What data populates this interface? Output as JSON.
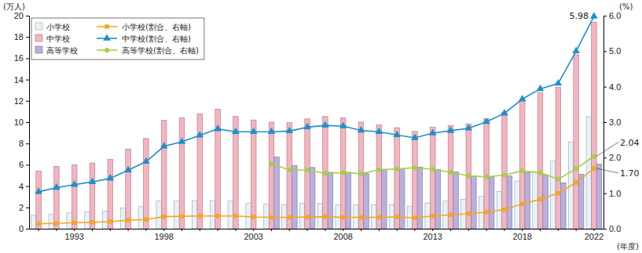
{
  "chart_data": {
    "type": "bar",
    "y_label": "(万人)",
    "y2_label": "(%)",
    "x_label": "(年度)",
    "categories": [
      null,
      null,
      "1993",
      null,
      null,
      null,
      null,
      "1998",
      null,
      null,
      null,
      null,
      "2003",
      null,
      null,
      null,
      null,
      "2008",
      null,
      null,
      null,
      null,
      "2013",
      null,
      null,
      null,
      null,
      "2018",
      null,
      null,
      null,
      "2022"
    ],
    "ylim": [
      0,
      20
    ],
    "yticks": [
      0,
      2,
      4,
      6,
      8,
      10,
      12,
      14,
      16,
      18,
      20
    ],
    "y2lim": [
      0,
      6
    ],
    "y2ticks": [
      {
        "value": 0,
        "label": "0.0"
      },
      {
        "value": 1,
        "label": "1.0"
      },
      {
        "value": 2,
        "label": "2.0"
      },
      {
        "value": 3,
        "label": "3.0"
      },
      {
        "value": 4,
        "label": "4.0"
      },
      {
        "value": 5,
        "label": "5.0"
      },
      {
        "value": 6,
        "label": "6.0"
      }
    ],
    "grid": false,
    "legend": "top-left",
    "series": [
      {
        "name": "小学校",
        "type": "bar",
        "color": "#e6f3fa",
        "values": [
          1.26,
          1.37,
          1.48,
          1.58,
          1.66,
          1.95,
          2.08,
          2.6,
          2.6,
          2.64,
          2.65,
          2.59,
          2.41,
          2.33,
          2.27,
          2.38,
          2.39,
          2.27,
          2.23,
          2.25,
          2.26,
          2.12,
          2.42,
          2.59,
          2.76,
          3.04,
          3.5,
          4.48,
          5.34,
          6.34,
          8.15,
          10.51
        ]
      },
      {
        "name": "中学校",
        "type": "bar",
        "color": "#f4b4c0",
        "values": [
          5.42,
          5.84,
          6.0,
          6.17,
          6.5,
          7.49,
          8.47,
          10.17,
          10.42,
          10.79,
          11.22,
          10.54,
          10.21,
          10.0,
          9.96,
          10.31,
          10.53,
          10.42,
          10.01,
          9.74,
          9.48,
          9.14,
          9.54,
          9.7,
          9.84,
          10.32,
          10.9,
          11.97,
          12.79,
          13.28,
          16.34,
          19.39
        ]
      },
      {
        "name": "高等学校",
        "type": "bar",
        "color": "#b9b0de",
        "values": [
          null,
          null,
          null,
          null,
          null,
          null,
          null,
          null,
          null,
          null,
          null,
          null,
          null,
          6.75,
          5.94,
          5.75,
          5.3,
          5.3,
          5.17,
          5.58,
          5.64,
          5.77,
          5.57,
          5.32,
          4.96,
          4.86,
          4.96,
          5.27,
          5.01,
          4.31,
          5.1,
          6.06
        ]
      },
      {
        "name": "小学校(割合、右軸)",
        "type": "line",
        "axis": "y2",
        "color": "#f5a623",
        "marker": "square",
        "values": [
          0.14,
          0.15,
          0.17,
          0.18,
          0.2,
          0.24,
          0.26,
          0.34,
          0.35,
          0.36,
          0.36,
          0.36,
          0.33,
          0.32,
          0.32,
          0.33,
          0.34,
          0.32,
          0.32,
          0.32,
          0.33,
          0.31,
          0.36,
          0.39,
          0.42,
          0.47,
          0.54,
          0.7,
          0.83,
          1.0,
          1.3,
          1.7
        ]
      },
      {
        "name": "中学校(割合、右軸)",
        "type": "line",
        "axis": "y2",
        "color": "#1f8fc9",
        "marker": "triangle",
        "values": [
          1.04,
          1.16,
          1.24,
          1.32,
          1.42,
          1.65,
          1.89,
          2.32,
          2.45,
          2.63,
          2.81,
          2.73,
          2.73,
          2.73,
          2.75,
          2.86,
          2.91,
          2.89,
          2.77,
          2.73,
          2.64,
          2.56,
          2.69,
          2.76,
          2.83,
          3.01,
          3.25,
          3.65,
          3.94,
          4.09,
          5.0,
          5.98
        ]
      },
      {
        "name": "高等学校(割合、右軸)",
        "type": "line",
        "axis": "y2",
        "color": "#a6cf45",
        "marker": "circle",
        "values": [
          null,
          null,
          null,
          null,
          null,
          null,
          null,
          null,
          null,
          null,
          null,
          null,
          null,
          1.82,
          1.66,
          1.65,
          1.56,
          1.58,
          1.55,
          1.66,
          1.68,
          1.72,
          1.67,
          1.59,
          1.49,
          1.46,
          1.51,
          1.63,
          1.58,
          1.39,
          1.69,
          2.04
        ]
      }
    ],
    "annotations": [
      {
        "text": "5.98",
        "x": "2022",
        "y": 5.98,
        "axis": "y2"
      },
      {
        "text": "2.04",
        "x": "2022",
        "y": 2.04,
        "axis": "y2"
      },
      {
        "text": "1.70",
        "x": "2022",
        "y": 1.7,
        "axis": "y2"
      }
    ]
  }
}
